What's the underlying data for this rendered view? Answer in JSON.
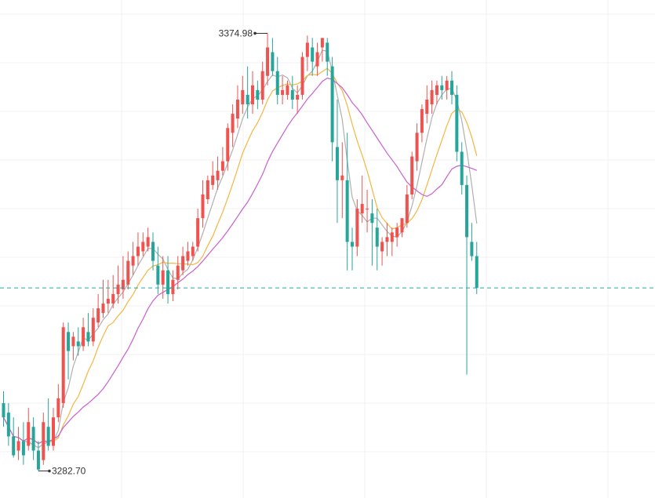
{
  "chart_data": {
    "type": "candlestick",
    "title": "",
    "xlabel": "",
    "ylabel": "",
    "ylim": [
      3277.0,
      3382.0
    ],
    "grid": true,
    "colors": {
      "up": "#ef5350",
      "down": "#26a69a",
      "ma_short": "#b0b0b0",
      "ma_mid": "#f5b642",
      "ma_long": "#c95fd0",
      "current_price_line": "#26a69a",
      "grid": "#f0f0f0"
    },
    "annotations": {
      "high_label": "3374.98",
      "low_label": "3282.70"
    },
    "current_price": 3321.3,
    "candles": [
      [
        3297.0,
        3299.5,
        3294.0,
        3292.0
      ],
      [
        3295.0,
        3297.0,
        3290.0,
        3288.0
      ],
      [
        3290.0,
        3294.0,
        3286.0,
        3285.5
      ],
      [
        3287.0,
        3292.0,
        3289.0,
        3285.0
      ],
      [
        3289.0,
        3293.0,
        3286.0,
        3284.0
      ],
      [
        3288.0,
        3296.0,
        3293.0,
        3287.0
      ],
      [
        3292.0,
        3294.0,
        3287.0,
        3285.0
      ],
      [
        3287.0,
        3289.0,
        3283.0,
        3282.7
      ],
      [
        3285.0,
        3295.0,
        3293.0,
        3284.0
      ],
      [
        3292.0,
        3298.0,
        3288.0,
        3287.0
      ],
      [
        3288.0,
        3296.0,
        3294.0,
        3287.0
      ],
      [
        3294.0,
        3301.0,
        3298.0,
        3293.0
      ],
      [
        3297.0,
        3314.0,
        3313.0,
        3296.0
      ],
      [
        3312.0,
        3314.0,
        3308.0,
        3302.0
      ],
      [
        3309.0,
        3312.0,
        3311.0,
        3306.0
      ],
      [
        3310.0,
        3313.0,
        3309.0,
        3307.0
      ],
      [
        3309.0,
        3315.0,
        3313.0,
        3308.0
      ],
      [
        3312.0,
        3316.0,
        3310.0,
        3309.0
      ],
      [
        3310.0,
        3317.0,
        3315.0,
        3309.0
      ],
      [
        3314.0,
        3320.0,
        3317.0,
        3313.0
      ],
      [
        3316.0,
        3323.0,
        3318.0,
        3315.0
      ],
      [
        3318.0,
        3323.0,
        3319.0,
        3316.0
      ],
      [
        3318.0,
        3324.0,
        3320.0,
        3317.0
      ],
      [
        3320.0,
        3326.0,
        3322.0,
        3318.0
      ],
      [
        3321.0,
        3328.0,
        3323.0,
        3319.0
      ],
      [
        3322.0,
        3329.0,
        3327.0,
        3321.0
      ],
      [
        3326.0,
        3331.0,
        3328.0,
        3324.0
      ],
      [
        3328.0,
        3333.0,
        3330.0,
        3326.0
      ],
      [
        3329.0,
        3333.0,
        3331.0,
        3328.0
      ],
      [
        3330.0,
        3334.0,
        3332.0,
        3329.0
      ],
      [
        3331.0,
        3333.0,
        3327.0,
        3325.0
      ],
      [
        3326.0,
        3330.0,
        3322.0,
        3320.0
      ],
      [
        3322.0,
        3328.0,
        3325.0,
        3319.0
      ],
      [
        3325.0,
        3328.0,
        3320.0,
        3318.0
      ],
      [
        3320.0,
        3325.0,
        3323.0,
        3318.5
      ],
      [
        3323.0,
        3328.0,
        3326.0,
        3321.0
      ],
      [
        3325.0,
        3330.0,
        3328.0,
        3324.0
      ],
      [
        3327.0,
        3331.0,
        3329.0,
        3326.0
      ],
      [
        3328.0,
        3331.0,
        3330.0,
        3327.0
      ],
      [
        3330.0,
        3338.0,
        3336.0,
        3329.0
      ],
      [
        3336.0,
        3344.0,
        3341.0,
        3334.0
      ],
      [
        3340.0,
        3345.0,
        3344.0,
        3339.0
      ],
      [
        3343.0,
        3348.0,
        3345.0,
        3342.0
      ],
      [
        3344.0,
        3349.0,
        3346.0,
        3342.0
      ],
      [
        3346.0,
        3351.0,
        3348.0,
        3345.0
      ],
      [
        3348.0,
        3356.0,
        3355.0,
        3346.0
      ],
      [
        3354.0,
        3360.0,
        3358.0,
        3351.0
      ],
      [
        3357.0,
        3364.0,
        3361.0,
        3355.0
      ],
      [
        3360.0,
        3366.0,
        3363.0,
        3358.0
      ],
      [
        3362.0,
        3368.0,
        3360.0,
        3357.0
      ],
      [
        3360.0,
        3367.0,
        3364.0,
        3358.0
      ],
      [
        3363.0,
        3365.0,
        3361.0,
        3359.0
      ],
      [
        3361.0,
        3369.0,
        3367.0,
        3360.0
      ],
      [
        3366.0,
        3374.98,
        3372.0,
        3364.0
      ],
      [
        3371.0,
        3374.0,
        3367.0,
        3366.0
      ],
      [
        3367.0,
        3370.0,
        3362.0,
        3360.0
      ],
      [
        3362.0,
        3366.0,
        3363.0,
        3360.0
      ],
      [
        3362.0,
        3365.0,
        3364.0,
        3361.0
      ],
      [
        3363.0,
        3366.0,
        3361.0,
        3359.0
      ],
      [
        3361.0,
        3364.0,
        3362.0,
        3358.0
      ],
      [
        3362.0,
        3371.0,
        3370.0,
        3361.0
      ],
      [
        3370.0,
        3374.5,
        3373.0,
        3367.0
      ],
      [
        3372.0,
        3374.0,
        3369.0,
        3366.0
      ],
      [
        3368.0,
        3373.0,
        3371.0,
        3366.0
      ],
      [
        3372.0,
        3374.0,
        3374.0,
        3369.0
      ],
      [
        3373.0,
        3374.0,
        3369.0,
        3366.0
      ],
      [
        3368.0,
        3370.0,
        3352.0,
        3348.0
      ],
      [
        3351.0,
        3361.0,
        3344.0,
        3335.0
      ],
      [
        3344.0,
        3352.0,
        3345.0,
        3336.0
      ],
      [
        3344.0,
        3354.0,
        3331.0,
        3325.0
      ],
      [
        3331.0,
        3334.0,
        3330.0,
        3325.0
      ],
      [
        3330.0,
        3340.0,
        3338.0,
        3328.0
      ],
      [
        3337.0,
        3345.0,
        3339.0,
        3335.0
      ],
      [
        3338.0,
        3342.0,
        3338.0,
        3333.0
      ],
      [
        3337.0,
        3340.0,
        3335.0,
        3326.0
      ],
      [
        3334.0,
        3338.0,
        3330.0,
        3325.0
      ],
      [
        3329.0,
        3332.0,
        3331.0,
        3326.0
      ],
      [
        3331.0,
        3335.0,
        3332.0,
        3328.0
      ],
      [
        3331.0,
        3334.0,
        3333.0,
        3328.0
      ],
      [
        3332.0,
        3335.0,
        3334.0,
        3330.0
      ],
      [
        3333.0,
        3335.0,
        3336.0,
        3332.0
      ],
      [
        3335.0,
        3343.0,
        3341.0,
        3334.0
      ],
      [
        3341.0,
        3350.0,
        3349.0,
        3340.0
      ],
      [
        3348.0,
        3356.0,
        3354.0,
        3346.0
      ],
      [
        3354.0,
        3360.0,
        3359.0,
        3352.0
      ],
      [
        3358.0,
        3364.0,
        3361.0,
        3356.0
      ],
      [
        3360.0,
        3365.0,
        3363.0,
        3358.0
      ],
      [
        3362.0,
        3365.0,
        3364.0,
        3360.0
      ],
      [
        3364.0,
        3366.0,
        3363.0,
        3361.0
      ],
      [
        3363.0,
        3366.0,
        3365.0,
        3361.0
      ],
      [
        3365.0,
        3367.0,
        3362.0,
        3360.0
      ],
      [
        3362.0,
        3364.0,
        3350.0,
        3348.0
      ],
      [
        3350.0,
        3352.0,
        3343.0,
        3341.0
      ],
      [
        3343.0,
        3345.0,
        3332.0,
        3303.0
      ],
      [
        3331.0,
        3335.0,
        3328.0,
        3327.0
      ],
      [
        3328.0,
        3331.0,
        3321.3,
        3320.0
      ]
    ]
  }
}
